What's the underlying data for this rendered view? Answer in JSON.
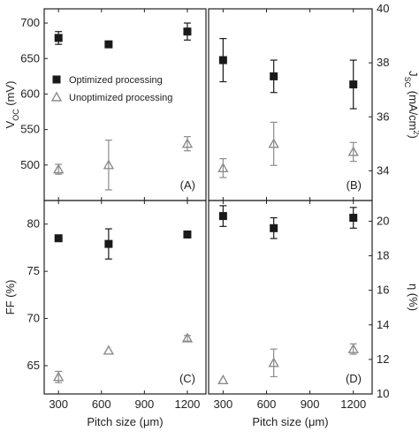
{
  "chart_data": [
    {
      "type": "scatter",
      "panel": "A",
      "tag": "(A)",
      "ylabel_main": "V",
      "ylabel_sub": "OC",
      "ylabel_unit": " (mV)",
      "ylim": [
        450,
        720
      ],
      "yticks": [
        500,
        550,
        600,
        650,
        700
      ],
      "xlim": [
        200,
        1330
      ],
      "xticks": [
        300,
        600,
        900,
        1200
      ],
      "y_axis_side": "left",
      "legend": {
        "position": "center-left",
        "entries": [
          "Optimized processing",
          "Unoptimized processing"
        ]
      },
      "series": [
        {
          "name": "Optimized processing",
          "x": [
            300,
            650,
            1200
          ],
          "y": [
            679,
            670,
            688
          ],
          "err": [
            9,
            0,
            12
          ]
        },
        {
          "name": "Unoptimized processing",
          "x": [
            300,
            650,
            1200
          ],
          "y": [
            494,
            500,
            530
          ],
          "err": [
            7,
            35,
            10
          ]
        }
      ]
    },
    {
      "type": "scatter",
      "panel": "B",
      "tag": "(B)",
      "ylabel_main": "J",
      "ylabel_sub": "SC",
      "ylabel_unit": " (mA/cm",
      "ylabel_sup": "2",
      "ylabel_end": ")",
      "ylim": [
        32.9,
        40
      ],
      "yticks": [
        34,
        36,
        38,
        40
      ],
      "xlim": [
        200,
        1330
      ],
      "xticks": [
        300,
        600,
        900,
        1200
      ],
      "y_axis_side": "right",
      "series": [
        {
          "name": "Optimized processing",
          "x": [
            300,
            650,
            1200
          ],
          "y": [
            38.1,
            37.5,
            37.2
          ],
          "err": [
            0.8,
            0.6,
            0.9
          ]
        },
        {
          "name": "Unoptimized processing",
          "x": [
            300,
            650,
            1200
          ],
          "y": [
            34.1,
            35.0,
            34.7
          ],
          "err": [
            0.35,
            0.8,
            0.35
          ]
        }
      ]
    },
    {
      "type": "scatter",
      "panel": "C",
      "tag": "(C)",
      "ylabel_main": "FF (%)",
      "xlabel": "Pitch size (μm)",
      "ylim": [
        62,
        82.5
      ],
      "yticks": [
        65,
        70,
        75,
        80
      ],
      "xlim": [
        200,
        1330
      ],
      "xticks": [
        300,
        600,
        900,
        1200
      ],
      "y_axis_side": "left",
      "series": [
        {
          "name": "Optimized processing",
          "x": [
            300,
            650,
            1200
          ],
          "y": [
            78.5,
            77.9,
            78.9
          ],
          "err": [
            0,
            1.6,
            0
          ]
        },
        {
          "name": "Unoptimized processing",
          "x": [
            300,
            650,
            1200
          ],
          "y": [
            63.8,
            66.6,
            67.9
          ],
          "err": [
            0.6,
            0,
            0.3
          ]
        }
      ]
    },
    {
      "type": "scatter",
      "panel": "D",
      "tag": "(D)",
      "ylabel_main": "η (%)",
      "xlabel": "Pitch size (μm)",
      "ylim": [
        10,
        21.2
      ],
      "yticks": [
        10,
        12,
        14,
        16,
        18,
        20
      ],
      "xlim": [
        200,
        1330
      ],
      "xticks": [
        300,
        600,
        900,
        1200
      ],
      "y_axis_side": "right",
      "series": [
        {
          "name": "Optimized processing",
          "x": [
            300,
            650,
            1200
          ],
          "y": [
            20.3,
            19.6,
            20.2
          ],
          "err": [
            0.6,
            0.6,
            0.6
          ]
        },
        {
          "name": "Unoptimized processing",
          "x": [
            300,
            650,
            1200
          ],
          "y": [
            10.8,
            11.8,
            12.6
          ],
          "err": [
            0,
            0.8,
            0.3
          ]
        }
      ]
    }
  ],
  "colors": {
    "optimized": "#1a1a1a",
    "unoptimized": "#8c8c8c"
  }
}
